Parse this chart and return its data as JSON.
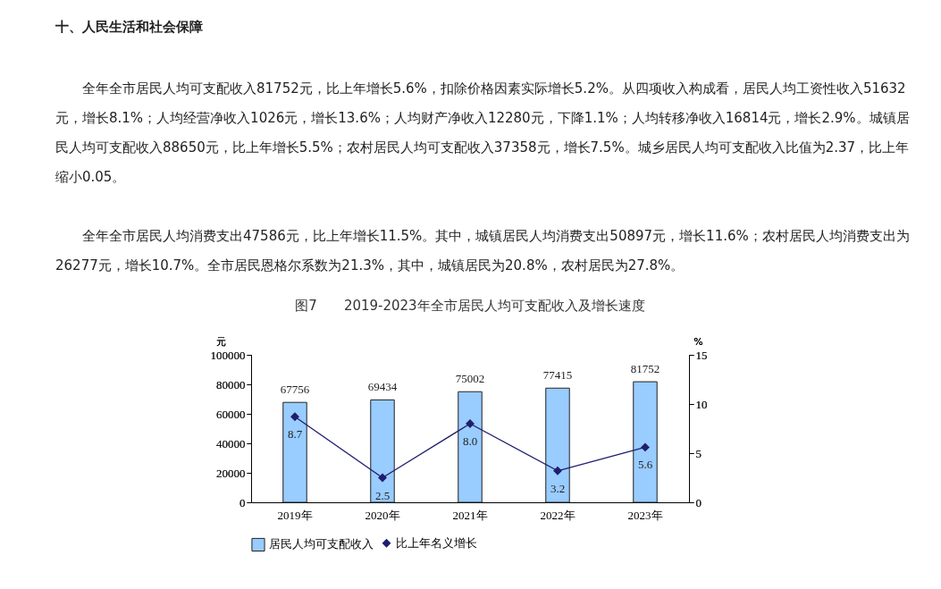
{
  "chart_data": {
    "type": "bar",
    "title": "图7　　2019-2023年全市居民人均可支配收入及增长速度",
    "annotations": [
      "十、人民生活和社会保障",
      "全年全市居民人均可支配收入81752元，比上年增长5.6%，扣除价格因素实际增长5.2%。从四项收入构成看，居民人均工资性收入51632元，增长8.1%；人均经营净收入1026元，增长13.6%；人均财产净收入12280元，下降1.1%；人均转移净收入16814元，增长2.9%。城镇居民人均可支配收入88650元，比上年增长5.5%；农村居民人均可支配收入37358元，增长7.5%。城乡居民人均可支配收入比值为2.37，比上年缩小0.05。",
      "全年全市居民人均消费支出47586元，比上年增长11.5%。其中，城镇居民人均消费支出50897元，增长11.6%；农村居民人均消费支出为26277元，增长10.7%。全市居民恩格尔系数为21.3%，其中，城镇居民为20.8%，农村居民为27.8%。"
    ],
    "categories": [
      "2019年",
      "2020年",
      "2021年",
      "2022年",
      "2023年"
    ],
    "series": [
      {
        "name": "居民人均可支配收入",
        "color": "#99ccff",
        "values": [
          67756,
          69434,
          75002,
          77415,
          81752
        ]
      },
      {
        "name": "比上年名义增长",
        "type": "line",
        "axis": "y2",
        "color": "#1f1f6e",
        "values": [
          8.7,
          2.5,
          8.0,
          3.2,
          5.6
        ],
        "value_labels": [
          "8.7",
          "2.5",
          "8.0",
          "3.2",
          "5.6"
        ]
      }
    ],
    "ylabel": "元",
    "y2label": "%",
    "ylim": [
      0,
      100000
    ],
    "yticks": [
      0,
      20000,
      40000,
      60000,
      80000,
      100000
    ],
    "y2lim": [
      0,
      15
    ],
    "y2ticks": [
      0,
      5,
      10,
      15
    ],
    "data_labels": true,
    "line_style": "solid",
    "marker": "diamond",
    "grid": false,
    "legend": "bottom"
  }
}
